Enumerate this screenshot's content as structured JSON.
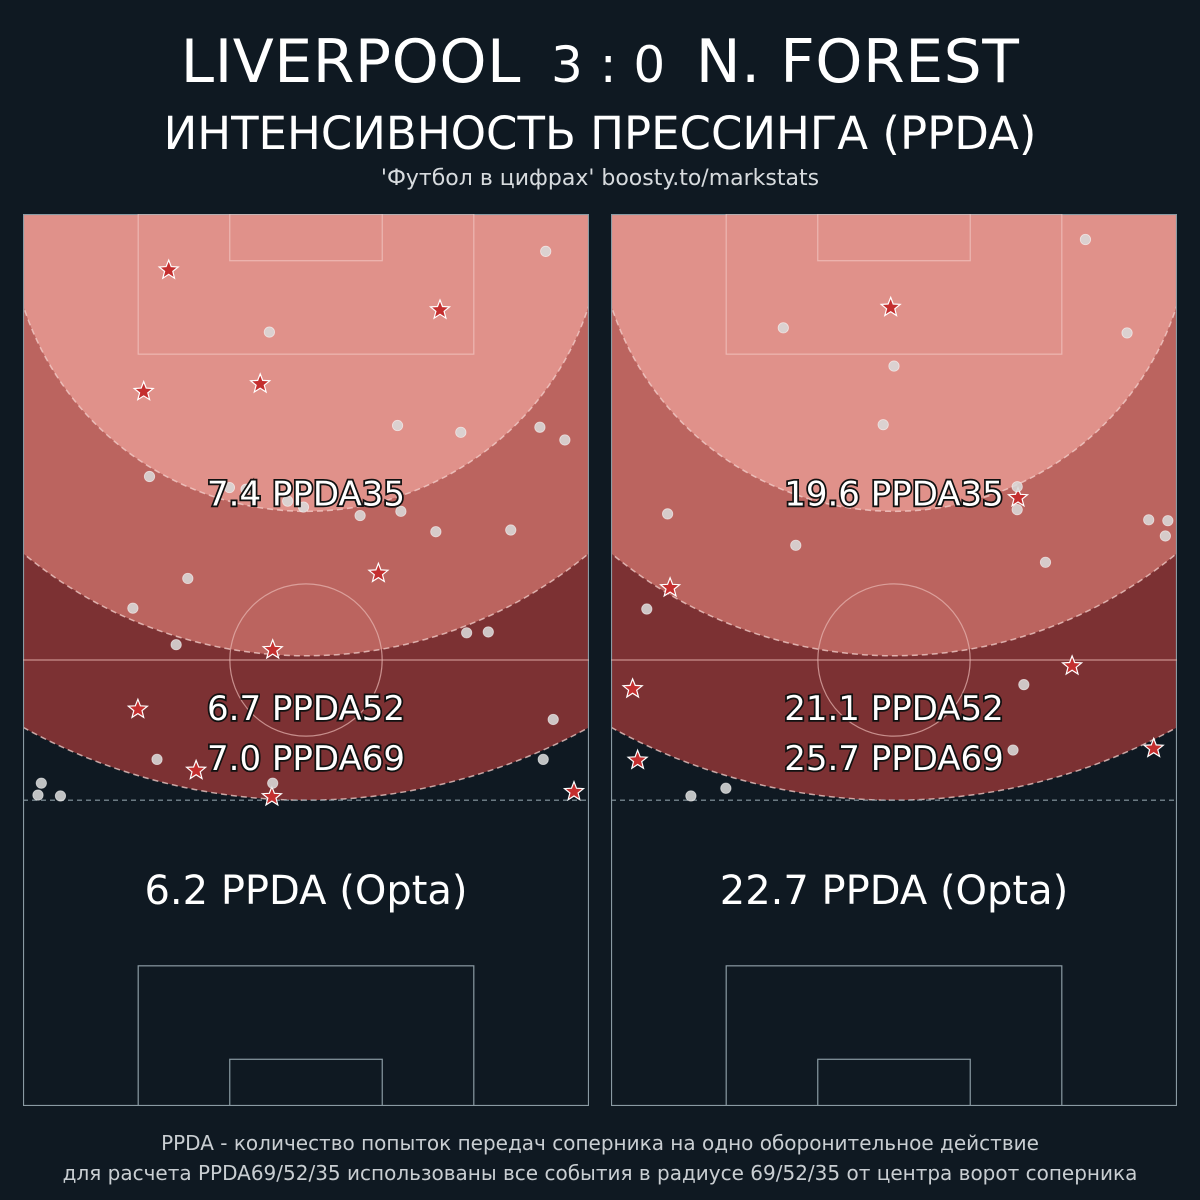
{
  "header": {
    "home_team": "LIVERPOOL",
    "score": "3 : 0",
    "away_team": "N. FOREST",
    "subtitle": "ИНТЕНСИВНОСТЬ ПРЕССИНГА (PPDA)",
    "source": "'Футбол в цифрах' boosty.to/markstats"
  },
  "footer": {
    "line1": "PPDA - количество попыток передач соперника на одно оборонительное действие",
    "line2": "для расчета PPDA69/52/35 использованы все события в радиусе 69/52/35 от центра ворот соперника"
  },
  "colors": {
    "background": "#0f1922",
    "zone35": "#e0918a",
    "zone52": "#bb645f",
    "zone69": "#7c3133",
    "star": "#c42f2f",
    "dot": "#d9d9d9",
    "pitch_line": "#8a9aa3"
  },
  "chart_data": [
    {
      "type": "scatter",
      "team": "LIVERPOOL",
      "labels": {
        "ppda35": "7.4 PPDA35",
        "ppda52": "6.7 PPDA52",
        "ppda69": "7.0 PPDA69",
        "opta": "6.2 PPDA (Opta)"
      },
      "ppda35": 7.4,
      "ppda52": 6.7,
      "ppda69": 7.0,
      "ppda_opta": 6.2,
      "radii": [
        35,
        52,
        69
      ],
      "xlim": [
        0,
        68
      ],
      "ylim": [
        0,
        105
      ],
      "markers": {
        "star": "defensive action",
        "dot": "opponent pass attempt"
      },
      "points": [
        {
          "x": 17.5,
          "y": 98.4,
          "type": "star"
        },
        {
          "x": 50.1,
          "y": 93.7,
          "type": "star"
        },
        {
          "x": 14.5,
          "y": 84.1,
          "type": "star"
        },
        {
          "x": 28.5,
          "y": 85.0,
          "type": "star"
        },
        {
          "x": 42.7,
          "y": 62.7,
          "type": "star"
        },
        {
          "x": 30.0,
          "y": 53.7,
          "type": "star"
        },
        {
          "x": 13.8,
          "y": 46.7,
          "type": "star"
        },
        {
          "x": 20.8,
          "y": 39.5,
          "type": "star"
        },
        {
          "x": 29.9,
          "y": 36.4,
          "type": "star"
        },
        {
          "x": 66.2,
          "y": 37.0,
          "type": "star"
        },
        {
          "x": 62.8,
          "y": 100.6,
          "type": "dot"
        },
        {
          "x": 29.6,
          "y": 91.1,
          "type": "dot"
        },
        {
          "x": 45.0,
          "y": 80.1,
          "type": "dot"
        },
        {
          "x": 52.6,
          "y": 79.3,
          "type": "dot"
        },
        {
          "x": 62.1,
          "y": 79.9,
          "type": "dot"
        },
        {
          "x": 65.1,
          "y": 78.4,
          "type": "dot"
        },
        {
          "x": 15.2,
          "y": 74.1,
          "type": "dot"
        },
        {
          "x": 24.8,
          "y": 72.8,
          "type": "dot"
        },
        {
          "x": 26.8,
          "y": 72.6,
          "type": "dot"
        },
        {
          "x": 31.8,
          "y": 71.2,
          "type": "dot"
        },
        {
          "x": 33.7,
          "y": 70.5,
          "type": "dot"
        },
        {
          "x": 45.4,
          "y": 70.0,
          "type": "dot"
        },
        {
          "x": 40.5,
          "y": 69.5,
          "type": "dot"
        },
        {
          "x": 49.6,
          "y": 67.6,
          "type": "dot"
        },
        {
          "x": 58.6,
          "y": 67.8,
          "type": "dot"
        },
        {
          "x": 19.8,
          "y": 62.1,
          "type": "dot"
        },
        {
          "x": 13.2,
          "y": 58.6,
          "type": "dot"
        },
        {
          "x": 18.4,
          "y": 54.3,
          "type": "dot"
        },
        {
          "x": 53.3,
          "y": 55.7,
          "type": "dot"
        },
        {
          "x": 55.9,
          "y": 55.8,
          "type": "dot"
        },
        {
          "x": 63.7,
          "y": 45.5,
          "type": "dot"
        },
        {
          "x": 16.1,
          "y": 40.8,
          "type": "dot"
        },
        {
          "x": 62.5,
          "y": 40.8,
          "type": "dot"
        },
        {
          "x": 2.2,
          "y": 38.0,
          "type": "dot"
        },
        {
          "x": 1.8,
          "y": 36.6,
          "type": "dot"
        },
        {
          "x": 4.5,
          "y": 36.5,
          "type": "dot"
        },
        {
          "x": 30.0,
          "y": 38.0,
          "type": "dot"
        }
      ]
    },
    {
      "type": "scatter",
      "team": "N. FOREST",
      "labels": {
        "ppda35": "19.6 PPDA35",
        "ppda52": "21.1 PPDA52",
        "ppda69": "25.7 PPDA69",
        "opta": "22.7 PPDA (Opta)"
      },
      "ppda35": 19.6,
      "ppda52": 21.1,
      "ppda69": 25.7,
      "ppda_opta": 22.7,
      "radii": [
        35,
        52,
        69
      ],
      "xlim": [
        0,
        68
      ],
      "ylim": [
        0,
        105
      ],
      "markers": {
        "star": "defensive action",
        "dot": "opponent pass attempt"
      },
      "points": [
        {
          "x": 33.6,
          "y": 94.0,
          "type": "star"
        },
        {
          "x": 48.9,
          "y": 71.6,
          "type": "star"
        },
        {
          "x": 7.1,
          "y": 61.0,
          "type": "star"
        },
        {
          "x": 55.4,
          "y": 51.8,
          "type": "star"
        },
        {
          "x": 2.6,
          "y": 49.1,
          "type": "star"
        },
        {
          "x": 3.2,
          "y": 40.7,
          "type": "star"
        },
        {
          "x": 65.2,
          "y": 42.1,
          "type": "star"
        },
        {
          "x": 57.0,
          "y": 102.0,
          "type": "dot"
        },
        {
          "x": 20.7,
          "y": 91.6,
          "type": "dot"
        },
        {
          "x": 62.0,
          "y": 91.0,
          "type": "dot"
        },
        {
          "x": 34.0,
          "y": 87.1,
          "type": "dot"
        },
        {
          "x": 32.7,
          "y": 80.2,
          "type": "dot"
        },
        {
          "x": 48.8,
          "y": 72.9,
          "type": "dot"
        },
        {
          "x": 48.8,
          "y": 70.2,
          "type": "dot"
        },
        {
          "x": 6.8,
          "y": 69.7,
          "type": "dot"
        },
        {
          "x": 22.2,
          "y": 66.0,
          "type": "dot"
        },
        {
          "x": 64.6,
          "y": 69.0,
          "type": "dot"
        },
        {
          "x": 66.9,
          "y": 68.9,
          "type": "dot"
        },
        {
          "x": 66.6,
          "y": 67.1,
          "type": "dot"
        },
        {
          "x": 52.2,
          "y": 64.0,
          "type": "dot"
        },
        {
          "x": 4.3,
          "y": 58.5,
          "type": "dot"
        },
        {
          "x": 49.6,
          "y": 49.6,
          "type": "dot"
        },
        {
          "x": 48.3,
          "y": 41.9,
          "type": "dot"
        },
        {
          "x": 9.6,
          "y": 36.5,
          "type": "dot"
        },
        {
          "x": 13.8,
          "y": 37.4,
          "type": "dot"
        }
      ]
    }
  ]
}
